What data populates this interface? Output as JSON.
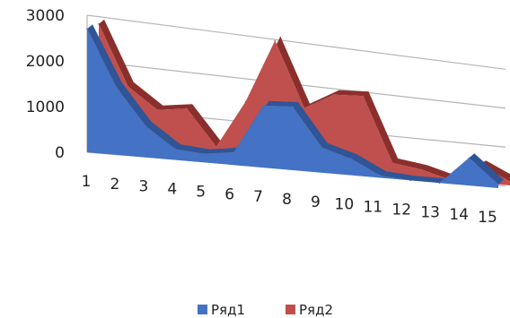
{
  "chart_data": {
    "type": "area",
    "three_d": true,
    "title": "",
    "xlabel": "",
    "ylabel": "",
    "categories": [
      "1",
      "2",
      "3",
      "4",
      "5",
      "6",
      "7",
      "8",
      "9",
      "10",
      "11",
      "12",
      "13",
      "14",
      "15"
    ],
    "y_ticks": [
      "0",
      "1000",
      "2000",
      "3000"
    ],
    "ylim": [
      0,
      3000
    ],
    "grid": true,
    "legend_position": "bottom",
    "series": [
      {
        "name": "Ряд1",
        "color": "#4472c4",
        "values": [
          2700,
          1500,
          700,
          250,
          200,
          300,
          1450,
          1500,
          600,
          400,
          50,
          0,
          0,
          700,
          100
        ]
      },
      {
        "name": "Ряд2",
        "color": "#c0504d",
        "values": [
          2750,
          1450,
          1000,
          1100,
          300,
          1400,
          2900,
          1400,
          1800,
          1850,
          300,
          200,
          0,
          450,
          100
        ]
      }
    ]
  }
}
